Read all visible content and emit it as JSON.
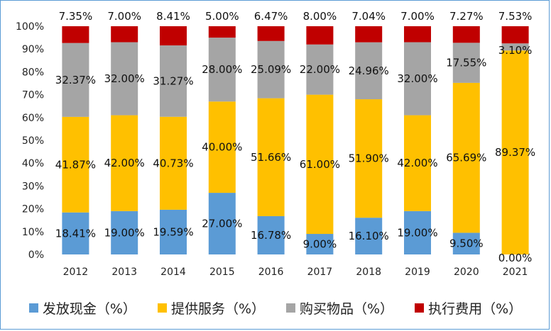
{
  "chart_data": {
    "type": "bar",
    "stacked": true,
    "categories": [
      "2012",
      "2013",
      "2014",
      "2015",
      "2016",
      "2017",
      "2018",
      "2019",
      "2020",
      "2021"
    ],
    "series": [
      {
        "name": "发放现金（%）",
        "color": "#5b9bd5",
        "values": [
          18.41,
          19.0,
          19.59,
          27.0,
          16.78,
          9.0,
          16.1,
          19.0,
          9.5,
          0.0
        ],
        "labels": [
          "18.41%",
          "19.00%",
          "19.59%",
          "27.00%",
          "16.78%",
          "9.00%",
          "16.10%",
          "19.00%",
          "9.50%",
          "0.00%"
        ]
      },
      {
        "name": "提供服务（%）",
        "color": "#ffc000",
        "values": [
          41.87,
          42.0,
          40.73,
          40.0,
          51.66,
          61.0,
          51.9,
          42.0,
          65.69,
          89.37
        ],
        "labels": [
          "41.87%",
          "42.00%",
          "40.73%",
          "40.00%",
          "51.66%",
          "61.00%",
          "51.90%",
          "42.00%",
          "65.69%",
          "89.37%"
        ]
      },
      {
        "name": "购买物品（%）",
        "color": "#a5a5a5",
        "values": [
          32.37,
          32.0,
          31.27,
          28.0,
          25.09,
          22.0,
          24.96,
          32.0,
          17.55,
          3.1
        ],
        "labels": [
          "32.37%",
          "32.00%",
          "31.27%",
          "28.00%",
          "25.09%",
          "22.00%",
          "24.96%",
          "32.00%",
          "17.55%",
          "3.10%"
        ]
      },
      {
        "name": "执行费用（%）",
        "color": "#c00000",
        "values": [
          7.35,
          7.0,
          8.41,
          5.0,
          6.47,
          8.0,
          7.04,
          7.0,
          7.27,
          7.53
        ],
        "labels": [
          "7.35%",
          "7.00%",
          "8.41%",
          "5.00%",
          "6.47%",
          "8.00%",
          "7.04%",
          "7.00%",
          "7.27%",
          "7.53%"
        ]
      }
    ],
    "yticks": [
      "0%",
      "10%",
      "20%",
      "30%",
      "40%",
      "50%",
      "60%",
      "70%",
      "80%",
      "90%",
      "100%"
    ],
    "ylim": [
      0,
      100
    ],
    "grid": false,
    "legend_position": "bottom"
  }
}
